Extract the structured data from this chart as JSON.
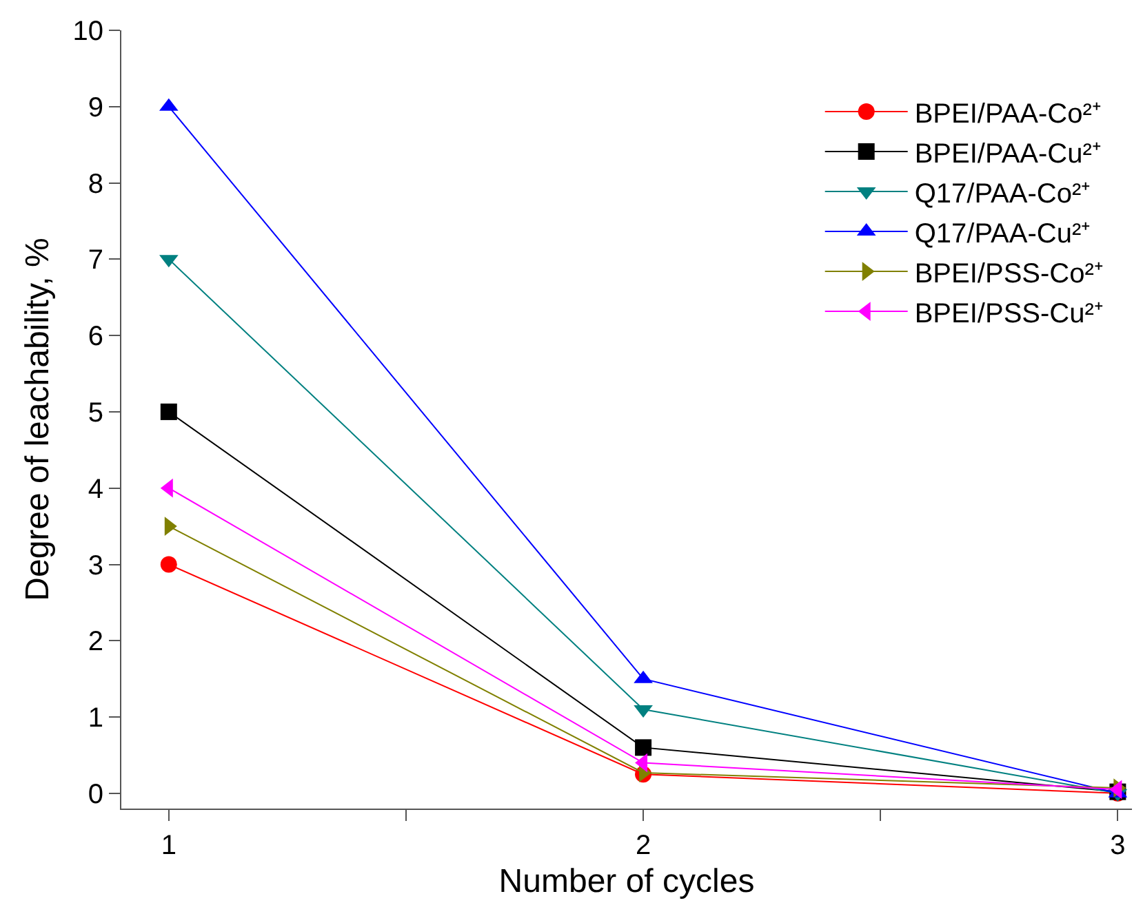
{
  "chart_data": {
    "type": "line",
    "xlabel": "Number of cycles",
    "ylabel": "Degree of leachability, %",
    "x": [
      1,
      2,
      3
    ],
    "xlim": [
      0.9,
      3.03
    ],
    "xticks": [
      1,
      {
        "value": 1.5,
        "label": null
      },
      2,
      {
        "value": 2.5,
        "label": null
      },
      3
    ],
    "ylim": [
      -0.2,
      10
    ],
    "yticks": [
      0,
      1,
      2,
      3,
      4,
      5,
      6,
      7,
      8,
      9,
      10
    ],
    "grid": false,
    "legend": "top right",
    "line_style": "solid",
    "series": [
      {
        "name": "BPEI/PAA-Co²⁺",
        "color": "#ff0000",
        "marker": "circle",
        "values": [
          3,
          0.25,
          0
        ]
      },
      {
        "name": "BPEI/PAA-Cu²⁺",
        "color": "#000000",
        "marker": "square",
        "values": [
          5,
          0.6,
          0.02
        ]
      },
      {
        "name": "Q17/PAA-Co²⁺",
        "color": "#008080",
        "marker": "triangle-down",
        "values": [
          7,
          1.1,
          0
        ]
      },
      {
        "name": "Q17/PAA-Cu²⁺",
        "color": "#0000ff",
        "marker": "triangle",
        "values": [
          9,
          1.5,
          0
        ]
      },
      {
        "name": "BPEI/PSS-Co²⁺",
        "color": "#808000",
        "marker": "triangle-right",
        "values": [
          3.5,
          0.27,
          0.07
        ]
      },
      {
        "name": "BPEI/PSS-Cu²⁺",
        "color": "#ff00ff",
        "marker": "triangle-left",
        "values": [
          4,
          0.4,
          0.05
        ]
      }
    ]
  }
}
